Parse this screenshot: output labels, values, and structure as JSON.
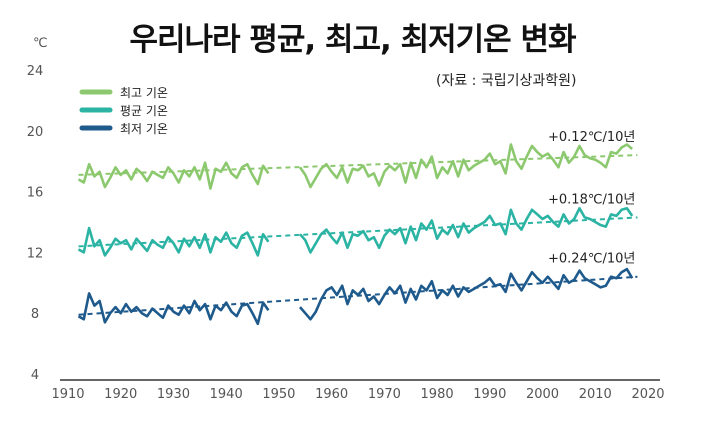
{
  "title": "우리나라 평균, 최고, 최저기온 변화",
  "source": "(자료 : 국립기상과학원)",
  "chart_data": {
    "type": "line",
    "unit": "℃",
    "xlim": [
      1910,
      2020
    ],
    "ylim": [
      4,
      24
    ],
    "x_ticks": [
      "1910",
      "1920",
      "1930",
      "1940",
      "1950",
      "1960",
      "1970",
      "1980",
      "1990",
      "2000",
      "2010",
      "2020"
    ],
    "y_ticks": [
      "4",
      "8",
      "12",
      "16",
      "20",
      "24"
    ],
    "gap": [
      1949,
      1953
    ],
    "series": [
      {
        "name": "최고 기온",
        "color": "#8cc86e",
        "trend_label": "+0.12℃/10년",
        "trend": [
          17.1,
          18.4
        ],
        "values": [
          [
            1912,
            16.8
          ],
          [
            1913,
            16.6
          ],
          [
            1914,
            17.8
          ],
          [
            1915,
            17.0
          ],
          [
            1916,
            17.3
          ],
          [
            1917,
            16.3
          ],
          [
            1918,
            16.9
          ],
          [
            1919,
            17.6
          ],
          [
            1920,
            17.1
          ],
          [
            1921,
            17.4
          ],
          [
            1922,
            16.8
          ],
          [
            1923,
            17.5
          ],
          [
            1924,
            17.2
          ],
          [
            1925,
            16.7
          ],
          [
            1926,
            17.3
          ],
          [
            1927,
            17.1
          ],
          [
            1928,
            16.9
          ],
          [
            1929,
            17.6
          ],
          [
            1930,
            17.2
          ],
          [
            1931,
            16.6
          ],
          [
            1932,
            17.4
          ],
          [
            1933,
            17.0
          ],
          [
            1934,
            17.6
          ],
          [
            1935,
            16.8
          ],
          [
            1936,
            17.9
          ],
          [
            1937,
            16.2
          ],
          [
            1938,
            17.5
          ],
          [
            1939,
            17.3
          ],
          [
            1940,
            17.9
          ],
          [
            1941,
            17.2
          ],
          [
            1942,
            16.9
          ],
          [
            1943,
            17.6
          ],
          [
            1944,
            17.8
          ],
          [
            1945,
            17.1
          ],
          [
            1946,
            16.5
          ],
          [
            1947,
            17.7
          ],
          [
            1948,
            17.2
          ],
          [
            1954,
            17.6
          ],
          [
            1955,
            17.1
          ],
          [
            1956,
            16.3
          ],
          [
            1957,
            16.9
          ],
          [
            1958,
            17.5
          ],
          [
            1959,
            17.8
          ],
          [
            1960,
            17.3
          ],
          [
            1961,
            16.9
          ],
          [
            1962,
            17.6
          ],
          [
            1963,
            16.6
          ],
          [
            1964,
            17.5
          ],
          [
            1965,
            17.4
          ],
          [
            1966,
            17.7
          ],
          [
            1967,
            17.0
          ],
          [
            1968,
            17.2
          ],
          [
            1969,
            16.4
          ],
          [
            1970,
            17.3
          ],
          [
            1971,
            17.7
          ],
          [
            1972,
            17.4
          ],
          [
            1973,
            17.8
          ],
          [
            1974,
            16.6
          ],
          [
            1975,
            17.9
          ],
          [
            1976,
            16.9
          ],
          [
            1977,
            18.1
          ],
          [
            1978,
            17.6
          ],
          [
            1979,
            18.3
          ],
          [
            1980,
            16.9
          ],
          [
            1981,
            17.6
          ],
          [
            1982,
            17.2
          ],
          [
            1983,
            18.0
          ],
          [
            1984,
            17.0
          ],
          [
            1985,
            18.1
          ],
          [
            1986,
            17.4
          ],
          [
            1987,
            17.7
          ],
          [
            1988,
            17.9
          ],
          [
            1989,
            18.1
          ],
          [
            1990,
            18.5
          ],
          [
            1991,
            17.8
          ],
          [
            1992,
            18.0
          ],
          [
            1993,
            17.2
          ],
          [
            1994,
            19.1
          ],
          [
            1995,
            18.0
          ],
          [
            1996,
            17.5
          ],
          [
            1997,
            18.3
          ],
          [
            1998,
            19.0
          ],
          [
            1999,
            18.6
          ],
          [
            2000,
            18.3
          ],
          [
            2001,
            18.5
          ],
          [
            2002,
            18.1
          ],
          [
            2003,
            17.6
          ],
          [
            2004,
            18.6
          ],
          [
            2005,
            17.9
          ],
          [
            2006,
            18.3
          ],
          [
            2007,
            19.0
          ],
          [
            2008,
            18.4
          ],
          [
            2009,
            18.2
          ],
          [
            2010,
            18.1
          ],
          [
            2011,
            17.9
          ],
          [
            2012,
            17.6
          ],
          [
            2013,
            18.6
          ],
          [
            2014,
            18.5
          ],
          [
            2015,
            18.9
          ],
          [
            2016,
            19.1
          ],
          [
            2017,
            18.8
          ]
        ]
      },
      {
        "name": "평균 기온",
        "color": "#2bb3a3",
        "trend_label": "+0.18℃/10년",
        "trend": [
          12.4,
          14.3
        ],
        "values": [
          [
            1912,
            12.2
          ],
          [
            1913,
            12.0
          ],
          [
            1914,
            13.6
          ],
          [
            1915,
            12.4
          ],
          [
            1916,
            12.8
          ],
          [
            1917,
            11.8
          ],
          [
            1918,
            12.3
          ],
          [
            1919,
            12.9
          ],
          [
            1920,
            12.6
          ],
          [
            1921,
            12.8
          ],
          [
            1922,
            12.2
          ],
          [
            1923,
            12.9
          ],
          [
            1924,
            12.5
          ],
          [
            1925,
            12.1
          ],
          [
            1926,
            12.8
          ],
          [
            1927,
            12.5
          ],
          [
            1928,
            12.3
          ],
          [
            1929,
            13.0
          ],
          [
            1930,
            12.6
          ],
          [
            1931,
            12.0
          ],
          [
            1932,
            12.9
          ],
          [
            1933,
            12.4
          ],
          [
            1934,
            13.0
          ],
          [
            1935,
            12.3
          ],
          [
            1936,
            13.2
          ],
          [
            1937,
            12.0
          ],
          [
            1938,
            13.0
          ],
          [
            1939,
            12.7
          ],
          [
            1940,
            13.3
          ],
          [
            1941,
            12.6
          ],
          [
            1942,
            12.3
          ],
          [
            1943,
            13.1
          ],
          [
            1944,
            13.3
          ],
          [
            1945,
            12.6
          ],
          [
            1946,
            11.8
          ],
          [
            1947,
            13.2
          ],
          [
            1948,
            12.7
          ],
          [
            1954,
            13.2
          ],
          [
            1955,
            12.8
          ],
          [
            1956,
            12.0
          ],
          [
            1957,
            12.6
          ],
          [
            1958,
            13.2
          ],
          [
            1959,
            13.5
          ],
          [
            1960,
            13.0
          ],
          [
            1961,
            12.6
          ],
          [
            1962,
            13.3
          ],
          [
            1963,
            12.3
          ],
          [
            1964,
            13.2
          ],
          [
            1965,
            13.1
          ],
          [
            1966,
            13.4
          ],
          [
            1967,
            12.8
          ],
          [
            1968,
            13.0
          ],
          [
            1969,
            12.3
          ],
          [
            1970,
            13.1
          ],
          [
            1971,
            13.5
          ],
          [
            1972,
            13.2
          ],
          [
            1973,
            13.6
          ],
          [
            1974,
            12.6
          ],
          [
            1975,
            13.7
          ],
          [
            1976,
            12.8
          ],
          [
            1977,
            13.9
          ],
          [
            1978,
            13.5
          ],
          [
            1979,
            14.1
          ],
          [
            1980,
            12.9
          ],
          [
            1981,
            13.5
          ],
          [
            1982,
            13.2
          ],
          [
            1983,
            13.8
          ],
          [
            1984,
            13.0
          ],
          [
            1985,
            13.9
          ],
          [
            1986,
            13.3
          ],
          [
            1987,
            13.6
          ],
          [
            1988,
            13.8
          ],
          [
            1989,
            14.0
          ],
          [
            1990,
            14.4
          ],
          [
            1991,
            13.8
          ],
          [
            1992,
            13.9
          ],
          [
            1993,
            13.2
          ],
          [
            1994,
            14.8
          ],
          [
            1995,
            13.9
          ],
          [
            1996,
            13.5
          ],
          [
            1997,
            14.2
          ],
          [
            1998,
            14.8
          ],
          [
            1999,
            14.5
          ],
          [
            2000,
            14.2
          ],
          [
            2001,
            14.4
          ],
          [
            2002,
            14.0
          ],
          [
            2003,
            13.7
          ],
          [
            2004,
            14.5
          ],
          [
            2005,
            13.9
          ],
          [
            2006,
            14.2
          ],
          [
            2007,
            14.9
          ],
          [
            2008,
            14.3
          ],
          [
            2009,
            14.2
          ],
          [
            2010,
            14.0
          ],
          [
            2011,
            13.8
          ],
          [
            2012,
            13.7
          ],
          [
            2013,
            14.5
          ],
          [
            2014,
            14.4
          ],
          [
            2015,
            14.8
          ],
          [
            2016,
            14.9
          ],
          [
            2017,
            14.4
          ]
        ]
      },
      {
        "name": "최저 기온",
        "color": "#1f5a8c",
        "trend_label": "+0.24℃/10년",
        "trend": [
          7.9,
          10.4
        ],
        "values": [
          [
            1912,
            7.8
          ],
          [
            1913,
            7.6
          ],
          [
            1914,
            9.3
          ],
          [
            1915,
            8.5
          ],
          [
            1916,
            8.8
          ],
          [
            1917,
            7.4
          ],
          [
            1918,
            8.0
          ],
          [
            1919,
            8.4
          ],
          [
            1920,
            8.0
          ],
          [
            1921,
            8.6
          ],
          [
            1922,
            8.1
          ],
          [
            1923,
            8.4
          ],
          [
            1924,
            8.0
          ],
          [
            1925,
            7.8
          ],
          [
            1926,
            8.3
          ],
          [
            1927,
            8.0
          ],
          [
            1928,
            7.7
          ],
          [
            1929,
            8.5
          ],
          [
            1930,
            8.1
          ],
          [
            1931,
            7.9
          ],
          [
            1932,
            8.5
          ],
          [
            1933,
            8.0
          ],
          [
            1934,
            8.8
          ],
          [
            1935,
            8.2
          ],
          [
            1936,
            8.6
          ],
          [
            1937,
            7.6
          ],
          [
            1938,
            8.5
          ],
          [
            1939,
            8.2
          ],
          [
            1940,
            8.7
          ],
          [
            1941,
            8.1
          ],
          [
            1942,
            7.8
          ],
          [
            1943,
            8.5
          ],
          [
            1944,
            8.6
          ],
          [
            1945,
            8.0
          ],
          [
            1946,
            7.3
          ],
          [
            1947,
            8.7
          ],
          [
            1948,
            8.2
          ],
          [
            1954,
            8.4
          ],
          [
            1955,
            8.0
          ],
          [
            1956,
            7.6
          ],
          [
            1957,
            8.1
          ],
          [
            1958,
            8.9
          ],
          [
            1959,
            9.5
          ],
          [
            1960,
            9.7
          ],
          [
            1961,
            9.2
          ],
          [
            1962,
            9.8
          ],
          [
            1963,
            8.6
          ],
          [
            1964,
            9.5
          ],
          [
            1965,
            9.2
          ],
          [
            1966,
            9.6
          ],
          [
            1967,
            8.8
          ],
          [
            1968,
            9.1
          ],
          [
            1969,
            8.6
          ],
          [
            1970,
            9.2
          ],
          [
            1971,
            9.7
          ],
          [
            1972,
            9.3
          ],
          [
            1973,
            9.8
          ],
          [
            1974,
            8.7
          ],
          [
            1975,
            9.6
          ],
          [
            1976,
            8.9
          ],
          [
            1977,
            9.8
          ],
          [
            1978,
            9.5
          ],
          [
            1979,
            10.1
          ],
          [
            1980,
            9.0
          ],
          [
            1981,
            9.5
          ],
          [
            1982,
            9.2
          ],
          [
            1983,
            9.8
          ],
          [
            1984,
            9.1
          ],
          [
            1985,
            9.7
          ],
          [
            1986,
            9.4
          ],
          [
            1987,
            9.6
          ],
          [
            1988,
            9.8
          ],
          [
            1989,
            10.0
          ],
          [
            1990,
            10.3
          ],
          [
            1991,
            9.8
          ],
          [
            1992,
            9.9
          ],
          [
            1993,
            9.4
          ],
          [
            1994,
            10.6
          ],
          [
            1995,
            10.0
          ],
          [
            1996,
            9.5
          ],
          [
            1997,
            10.1
          ],
          [
            1998,
            10.7
          ],
          [
            1999,
            10.3
          ],
          [
            2000,
            10.0
          ],
          [
            2001,
            10.4
          ],
          [
            2002,
            10.0
          ],
          [
            2003,
            9.6
          ],
          [
            2004,
            10.5
          ],
          [
            2005,
            10.0
          ],
          [
            2006,
            10.2
          ],
          [
            2007,
            10.8
          ],
          [
            2008,
            10.3
          ],
          [
            2009,
            10.1
          ],
          [
            2010,
            9.9
          ],
          [
            2011,
            9.7
          ],
          [
            2012,
            9.8
          ],
          [
            2013,
            10.4
          ],
          [
            2014,
            10.3
          ],
          [
            2015,
            10.7
          ],
          [
            2016,
            10.9
          ],
          [
            2017,
            10.3
          ]
        ]
      }
    ]
  }
}
